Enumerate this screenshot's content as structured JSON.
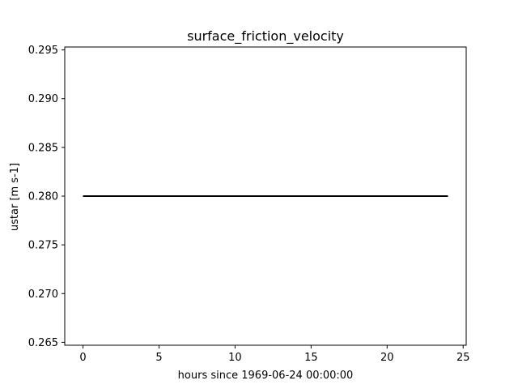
{
  "chart_data": {
    "type": "line",
    "title": "surface_friction_velocity",
    "xlabel": "hours since 1969-06-24 00:00:00",
    "ylabel": "ustar [m s-1]",
    "xlim": [
      -1.2,
      25.2
    ],
    "ylim": [
      0.2647,
      0.2953
    ],
    "xticks": [
      0,
      5,
      10,
      15,
      20,
      25
    ],
    "xtick_labels": [
      "0",
      "5",
      "10",
      "15",
      "20",
      "25"
    ],
    "yticks": [
      0.265,
      0.27,
      0.275,
      0.28,
      0.285,
      0.29,
      0.295
    ],
    "ytick_labels": [
      "0.265",
      "0.270",
      "0.275",
      "0.280",
      "0.285",
      "0.290",
      "0.295"
    ],
    "grid": false,
    "series": [
      {
        "color": "#000000",
        "x": [
          0,
          24
        ],
        "y": [
          0.28,
          0.28
        ]
      }
    ]
  }
}
